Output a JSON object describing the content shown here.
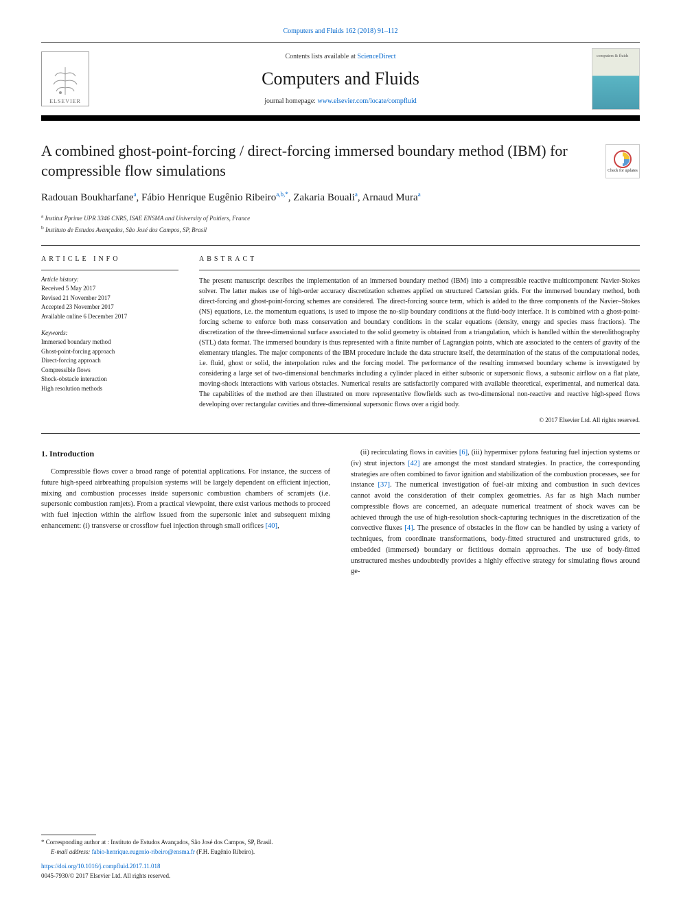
{
  "header": {
    "top_link": "Computers and Fluids 162 (2018) 91–112",
    "contents_prefix": "Contents lists available at ",
    "contents_link": "ScienceDirect",
    "journal_title": "Computers and Fluids",
    "homepage_prefix": "journal homepage: ",
    "homepage_link": "www.elsevier.com/locate/compfluid",
    "publisher": "ELSEVIER",
    "cover_label": "computers & fluids"
  },
  "article": {
    "title": "A combined ghost-point-forcing / direct-forcing immersed boundary method (IBM) for compressible flow simulations",
    "check_updates": "Check for updates",
    "authors_html": "Radouan Boukharfane<sup>a</sup>, Fábio Henrique Eugênio Ribeiro<sup>a,b,*</sup>, Zakaria Bouali<sup>a</sup>, Arnaud Mura<sup>a</sup>",
    "affiliations": [
      "a Institut Pprime UPR 3346 CNRS, ISAE ENSMA and University of Poitiers, France",
      "b Instituto de Estudos Avançados, São José dos Campos, SP, Brasil"
    ]
  },
  "info": {
    "heading": "ARTICLE INFO",
    "history_label": "Article history:",
    "history": [
      "Received 5 May 2017",
      "Revised 21 November 2017",
      "Accepted 23 November 2017",
      "Available online 6 December 2017"
    ],
    "keywords_label": "Keywords:",
    "keywords": [
      "Immersed boundary method",
      "Ghost-point-forcing approach",
      "Direct-forcing approach",
      "Compressible flows",
      "Shock-obstacle interaction",
      "High resolution methods"
    ]
  },
  "abstract": {
    "heading": "ABSTRACT",
    "text": "The present manuscript describes the implementation of an immersed boundary method (IBM) into a compressible reactive multicomponent Navier-Stokes solver. The latter makes use of high-order accuracy discretization schemes applied on structured Cartesian grids. For the immersed boundary method, both direct-forcing and ghost-point-forcing schemes are considered. The direct-forcing source term, which is added to the three components of the Navier–Stokes (NS) equations, i.e. the momentum equations, is used to impose the no-slip boundary conditions at the fluid-body interface. It is combined with a ghost-point-forcing scheme to enforce both mass conservation and boundary conditions in the scalar equations (density, energy and species mass fractions). The discretization of the three-dimensional surface associated to the solid geometry is obtained from a triangulation, which is handled within the stereolithography (STL) data format. The immersed boundary is thus represented with a finite number of Lagrangian points, which are associated to the centers of gravity of the elementary triangles. The major components of the IBM procedure include the data structure itself, the determination of the status of the computational nodes, i.e. fluid, ghost or solid, the interpolation rules and the forcing model. The performance of the resulting immersed boundary scheme is investigated by considering a large set of two-dimensional benchmarks including a cylinder placed in either subsonic or supersonic flows, a subsonic airflow on a flat plate, moving-shock interactions with various obstacles. Numerical results are satisfactorily compared with available theoretical, experimental, and numerical data. The capabilities of the method are then illustrated on more representative flowfields such as two-dimensional non-reactive and reactive high-speed flows developing over rectangular cavities and three-dimensional supersonic flows over a rigid body.",
    "copyright": "© 2017 Elsevier Ltd. All rights reserved."
  },
  "body": {
    "section_number": "1.",
    "section_title": "Introduction",
    "col1": "Compressible flows cover a broad range of potential applications. For instance, the success of future high-speed airbreathing propulsion systems will be largely dependent on efficient injection, mixing and combustion processes inside supersonic combustion chambers of scramjets (i.e. supersonic combustion ramjets). From a practical viewpoint, there exist various methods to proceed with fuel injection within the airflow issued from the supersonic inlet and subsequent mixing enhancement: (i) transverse or crossflow fuel injection through small orifices ",
    "ref1": "[40]",
    "col1_end": ",",
    "col2_start": "(ii) recirculating flows in cavities ",
    "ref2": "[6]",
    "col2_mid1": ", (iii) hypermixer pylons featuring fuel injection systems or (iv) strut injectors ",
    "ref3": "[42]",
    "col2_mid2": " are amongst the most standard strategies. In practice, the corresponding strategies are often combined to favor ignition and stabilization of the combustion processes, see for instance ",
    "ref4": "[37]",
    "col2_mid3": ". The numerical investigation of fuel-air mixing and combustion in such devices cannot avoid the consideration of their complex geometries. As far as high Mach number compressible flows are concerned, an adequate numerical treatment of shock waves can be achieved through the use of high-resolution shock-capturing techniques in the discretization of the convective fluxes ",
    "ref5": "[4]",
    "col2_end": ". The presence of obstacles in the flow can be handled by using a variety of techniques, from coordinate transformations, body-fitted structured and unstructured grids, to embedded (immersed) boundary or fictitious domain approaches. The use of body-fitted unstructured meshes undoubtedly provides a highly effective strategy for simulating flows around ge-"
  },
  "footer": {
    "corresponding": "* Corresponding author at : Instituto de Estudos Avançados, São José dos Campos, SP, Brasil.",
    "email_label": "E-mail address: ",
    "email": "fabio-henrique.eugenio-ribeiro@ensma.fr",
    "email_suffix": " (F.H. Eugênio Ribeiro).",
    "doi": "https://doi.org/10.1016/j.compfluid.2017.11.018",
    "issn_line": "0045-7930/© 2017 Elsevier Ltd. All rights reserved."
  },
  "colors": {
    "link": "#0066cc",
    "text": "#1a1a1a",
    "rule": "#333333"
  }
}
